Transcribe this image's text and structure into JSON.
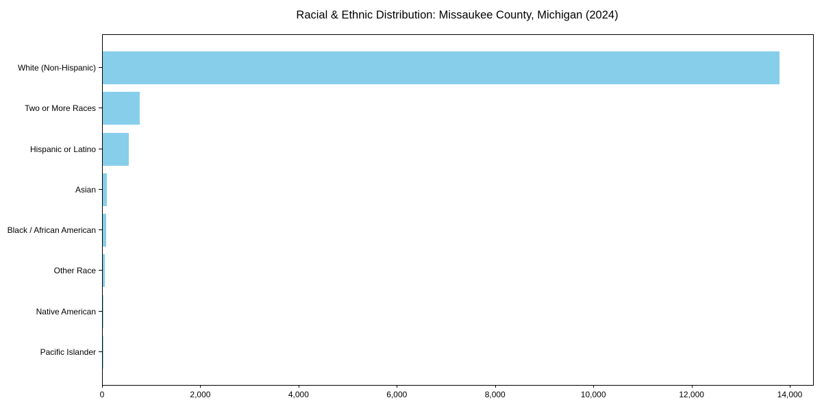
{
  "chart_data": {
    "type": "bar",
    "orientation": "horizontal",
    "title": "Racial & Ethnic Distribution: Missaukee County, Michigan (2024)",
    "categories": [
      "White (Non-Hispanic)",
      "Two or More Races",
      "Hispanic or Latino",
      "Asian",
      "Black / African American",
      "Other Race",
      "Native American",
      "Pacific Islander"
    ],
    "values": [
      13770,
      755,
      525,
      85,
      70,
      45,
      20,
      5
    ],
    "bar_color": "#87CEEB",
    "xlabel": "",
    "ylabel": "",
    "xlim": [
      0,
      14460
    ],
    "xticks": {
      "values": [
        0,
        2000,
        4000,
        6000,
        8000,
        10000,
        12000,
        14000
      ],
      "labels": [
        "0",
        "2,000",
        "4,000",
        "6,000",
        "8,000",
        "10,000",
        "12,000",
        "14,000"
      ]
    },
    "grid": false,
    "legend": null,
    "background_color": "#ffffff",
    "frame_color": "#000000"
  }
}
